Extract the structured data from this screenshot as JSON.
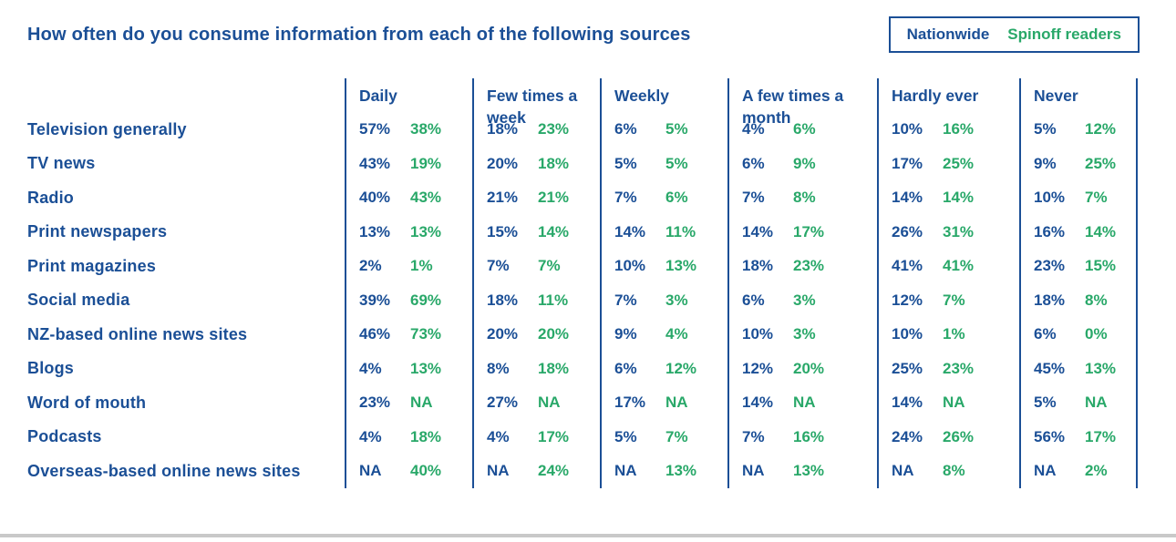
{
  "title": "How often do you consume information from each of the following sources",
  "legend": {
    "nationwide_label": "Nationwide",
    "spinoff_label": "Spinoff readers"
  },
  "colors": {
    "nationwide": "#1B4F96",
    "spinoff": "#29A869"
  },
  "chart_data": {
    "type": "table",
    "title": "How often do you consume information from each of the following sources",
    "series_names": [
      "Nationwide",
      "Spinoff readers"
    ],
    "columns": [
      "Daily",
      "Few times a week",
      "Weekly",
      "A few times a month",
      "Hardly ever",
      "Never"
    ],
    "rows": [
      {
        "label": "Television generally",
        "values": [
          [
            "57%",
            "38%"
          ],
          [
            "18%",
            "23%"
          ],
          [
            "6%",
            "5%"
          ],
          [
            "4%",
            "6%"
          ],
          [
            "10%",
            "16%"
          ],
          [
            "5%",
            "12%"
          ]
        ]
      },
      {
        "label": "TV news",
        "values": [
          [
            "43%",
            "19%"
          ],
          [
            "20%",
            "18%"
          ],
          [
            "5%",
            "5%"
          ],
          [
            "6%",
            "9%"
          ],
          [
            "17%",
            "25%"
          ],
          [
            "9%",
            "25%"
          ]
        ]
      },
      {
        "label": "Radio",
        "values": [
          [
            "40%",
            "43%"
          ],
          [
            "21%",
            "21%"
          ],
          [
            "7%",
            "6%"
          ],
          [
            "7%",
            "8%"
          ],
          [
            "14%",
            "14%"
          ],
          [
            "10%",
            "7%"
          ]
        ]
      },
      {
        "label": "Print newspapers",
        "values": [
          [
            "13%",
            "13%"
          ],
          [
            "15%",
            "14%"
          ],
          [
            "14%",
            "11%"
          ],
          [
            "14%",
            "17%"
          ],
          [
            "26%",
            "31%"
          ],
          [
            "16%",
            "14%"
          ]
        ]
      },
      {
        "label": "Print magazines",
        "values": [
          [
            "2%",
            "1%"
          ],
          [
            "7%",
            "7%"
          ],
          [
            "10%",
            "13%"
          ],
          [
            "18%",
            "23%"
          ],
          [
            "41%",
            "41%"
          ],
          [
            "23%",
            "15%"
          ]
        ]
      },
      {
        "label": "Social media",
        "values": [
          [
            "39%",
            "69%"
          ],
          [
            "18%",
            "11%"
          ],
          [
            "7%",
            "3%"
          ],
          [
            "6%",
            "3%"
          ],
          [
            "12%",
            "7%"
          ],
          [
            "18%",
            "8%"
          ]
        ]
      },
      {
        "label": "NZ-based online news sites",
        "values": [
          [
            "46%",
            "73%"
          ],
          [
            "20%",
            "20%"
          ],
          [
            "9%",
            "4%"
          ],
          [
            "10%",
            "3%"
          ],
          [
            "10%",
            "1%"
          ],
          [
            "6%",
            "0%"
          ]
        ]
      },
      {
        "label": "Blogs",
        "values": [
          [
            "4%",
            "13%"
          ],
          [
            "8%",
            "18%"
          ],
          [
            "6%",
            "12%"
          ],
          [
            "12%",
            "20%"
          ],
          [
            "25%",
            "23%"
          ],
          [
            "45%",
            "13%"
          ]
        ]
      },
      {
        "label": "Word of mouth",
        "values": [
          [
            "23%",
            "NA"
          ],
          [
            "27%",
            "NA"
          ],
          [
            "17%",
            "NA"
          ],
          [
            "14%",
            "NA"
          ],
          [
            "14%",
            "NA"
          ],
          [
            "5%",
            "NA"
          ]
        ]
      },
      {
        "label": "Podcasts",
        "values": [
          [
            "4%",
            "18%"
          ],
          [
            "4%",
            "17%"
          ],
          [
            "5%",
            "7%"
          ],
          [
            "7%",
            "16%"
          ],
          [
            "24%",
            "26%"
          ],
          [
            "56%",
            "17%"
          ]
        ]
      },
      {
        "label": "Overseas-based online news sites",
        "values": [
          [
            "NA",
            "40%"
          ],
          [
            "NA",
            "24%"
          ],
          [
            "NA",
            "13%"
          ],
          [
            "NA",
            "13%"
          ],
          [
            "NA",
            "8%"
          ],
          [
            "NA",
            "2%"
          ]
        ]
      }
    ]
  }
}
